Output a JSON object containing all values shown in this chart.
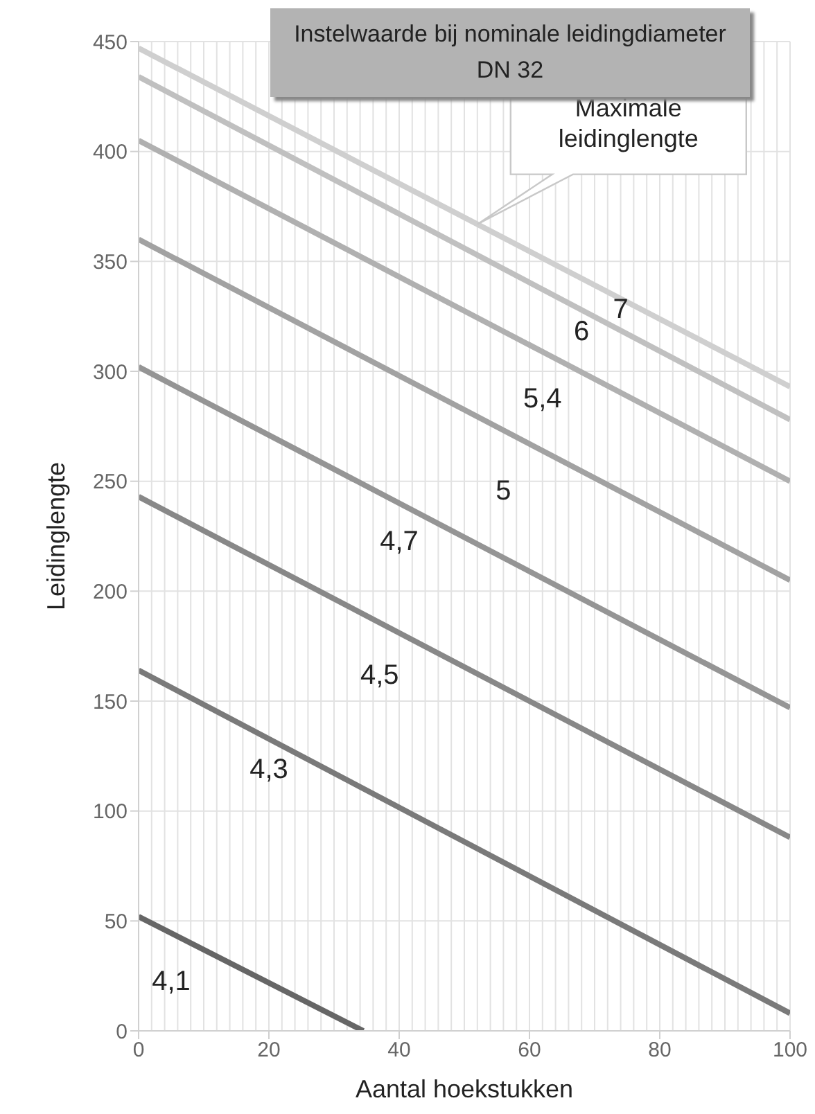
{
  "chart_data": {
    "type": "line",
    "title": "Instelwaarde bij nominale leidingdiameter DN 32",
    "xlabel": "Aantal hoekstukken",
    "ylabel": "Leidinglengte",
    "series": [
      {
        "name": "7",
        "color": "#cfcfcf",
        "x": [
          0,
          100
        ],
        "values": [
          447,
          293
        ]
      },
      {
        "name": "6",
        "color": "#c0c0c0",
        "x": [
          0,
          100
        ],
        "values": [
          434,
          278
        ]
      },
      {
        "name": "5,4",
        "color": "#b0b0b0",
        "x": [
          0,
          100
        ],
        "values": [
          405,
          250
        ]
      },
      {
        "name": "5",
        "color": "#a2a2a2",
        "x": [
          0,
          100
        ],
        "values": [
          360,
          205
        ]
      },
      {
        "name": "4,7",
        "color": "#959595",
        "x": [
          0,
          100
        ],
        "values": [
          302,
          147
        ]
      },
      {
        "name": "4,5",
        "color": "#888888",
        "x": [
          0,
          100
        ],
        "values": [
          243,
          88
        ]
      },
      {
        "name": "4,3",
        "color": "#7a7a7a",
        "x": [
          0,
          100
        ],
        "values": [
          164,
          8
        ]
      },
      {
        "name": "4,1",
        "color": "#666666",
        "x": [
          0,
          34.5
        ],
        "values": [
          52,
          0
        ]
      }
    ],
    "annotations": [
      "Maximale leidinglengte"
    ],
    "xlim": [
      0,
      100
    ],
    "xticks": [
      0,
      20,
      40,
      60,
      80,
      100
    ],
    "ylim": [
      0,
      450
    ],
    "yticks": [
      0,
      50,
      100,
      150,
      200,
      250,
      300,
      350,
      400,
      450
    ],
    "grid": true,
    "marker": "none",
    "line_style": "solid"
  }
}
